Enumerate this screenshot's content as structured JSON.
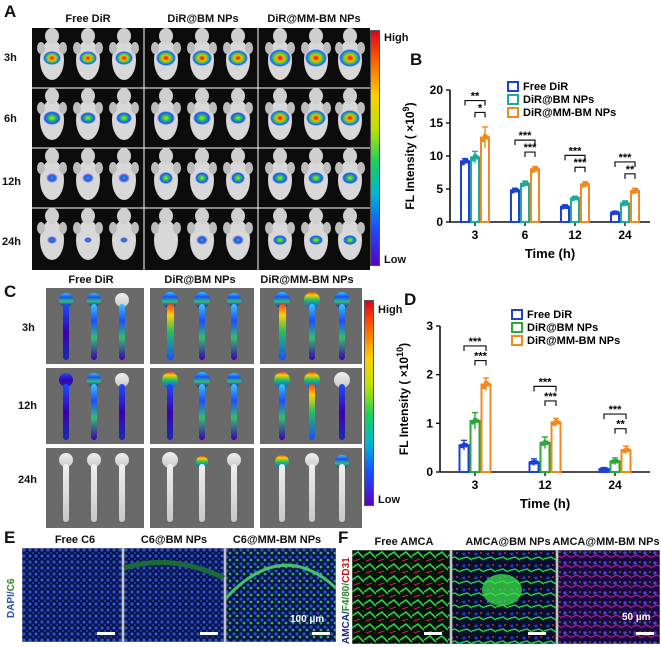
{
  "panel_labels": {
    "A": "A",
    "B": "B",
    "C": "C",
    "D": "D",
    "E": "E",
    "F": "F"
  },
  "panelA": {
    "columns": [
      "Free DiR",
      "DiR@BM NPs",
      "DiR@MM-BM NPs"
    ],
    "rows": [
      "3h",
      "6h",
      "12h",
      "24h"
    ],
    "colorbar": {
      "high": "High",
      "low": "Low"
    }
  },
  "panelC": {
    "columns": [
      "Free DiR",
      "DiR@BM NPs",
      "DiR@MM-BM NPs"
    ],
    "rows": [
      "3h",
      "12h",
      "24h"
    ],
    "colorbar": {
      "high": "High",
      "low": "Low"
    }
  },
  "panelE": {
    "columns": [
      "Free C6",
      "C6@BM NPs",
      "C6@MM-BM NPs"
    ],
    "side_label_a": "DAPI/",
    "side_label_b": "C6",
    "scale": "100 µm"
  },
  "panelF": {
    "columns": [
      "Free AMCA",
      "AMCA@BM NPs",
      "AMCA@MM-BM NPs"
    ],
    "side_label_a": "AMCA/",
    "side_label_b": "F4/80/",
    "side_label_c": "CD31",
    "scale": "50 µm"
  },
  "colors": {
    "free": "#1f3fd6",
    "bm": "#1ea99a",
    "mm": "#f08a1e",
    "bm_d": "#2ca83a"
  },
  "chart_data": [
    {
      "type": "bar",
      "panel": "B",
      "categories": [
        "3",
        "6",
        "12",
        "24"
      ],
      "xlabel": "Time (h)",
      "ylabel": "FL Intensity ( ×10",
      "ylabel_exp": "9",
      "ylim": [
        0,
        20
      ],
      "yticks": [
        "0",
        "5",
        "10",
        "15",
        "20"
      ],
      "series": [
        {
          "name": "Free DiR",
          "values": [
            9.2,
            4.8,
            2.3,
            1.4
          ],
          "err": [
            0.4,
            0.3,
            0.3,
            0.2
          ]
        },
        {
          "name": "DiR@BM NPs",
          "values": [
            9.8,
            5.8,
            3.6,
            2.8
          ],
          "err": [
            0.9,
            0.4,
            0.3,
            0.4
          ]
        },
        {
          "name": "DiR@MM-BM NPs",
          "values": [
            12.8,
            8.0,
            5.7,
            4.7
          ],
          "err": [
            1.6,
            0.4,
            0.4,
            0.4
          ]
        }
      ],
      "significance": [
        {
          "cat": 0,
          "from": 0,
          "to": 2,
          "label": "**"
        },
        {
          "cat": 0,
          "from": 1,
          "to": 2,
          "label": "*"
        },
        {
          "cat": 1,
          "from": 0,
          "to": 2,
          "label": "***"
        },
        {
          "cat": 1,
          "from": 1,
          "to": 2,
          "label": "***"
        },
        {
          "cat": 2,
          "from": 0,
          "to": 2,
          "label": "***"
        },
        {
          "cat": 2,
          "from": 1,
          "to": 2,
          "label": "***"
        },
        {
          "cat": 3,
          "from": 0,
          "to": 2,
          "label": "***"
        },
        {
          "cat": 3,
          "from": 1,
          "to": 2,
          "label": "**"
        }
      ]
    },
    {
      "type": "bar",
      "panel": "D",
      "categories": [
        "3",
        "12",
        "24"
      ],
      "xlabel": "Time (h)",
      "ylabel": "FL Intensity ( ×10",
      "ylabel_exp": "10",
      "ylim": [
        0,
        3
      ],
      "yticks": [
        "0",
        "1",
        "2",
        "3"
      ],
      "series": [
        {
          "name": "Free DiR",
          "values": [
            0.55,
            0.2,
            0.06
          ],
          "err": [
            0.1,
            0.07,
            0.02
          ]
        },
        {
          "name": "DiR@BM NPs",
          "values": [
            1.05,
            0.6,
            0.22
          ],
          "err": [
            0.17,
            0.12,
            0.07
          ]
        },
        {
          "name": "DiR@MM-BM NPs",
          "values": [
            1.8,
            1.02,
            0.45
          ],
          "err": [
            0.13,
            0.08,
            0.08
          ]
        }
      ],
      "significance": [
        {
          "cat": 0,
          "from": 0,
          "to": 2,
          "label": "***"
        },
        {
          "cat": 0,
          "from": 1,
          "to": 2,
          "label": "***"
        },
        {
          "cat": 1,
          "from": 0,
          "to": 2,
          "label": "***"
        },
        {
          "cat": 1,
          "from": 1,
          "to": 2,
          "label": "***"
        },
        {
          "cat": 2,
          "from": 0,
          "to": 2,
          "label": "***"
        },
        {
          "cat": 2,
          "from": 1,
          "to": 2,
          "label": "**"
        }
      ]
    }
  ]
}
